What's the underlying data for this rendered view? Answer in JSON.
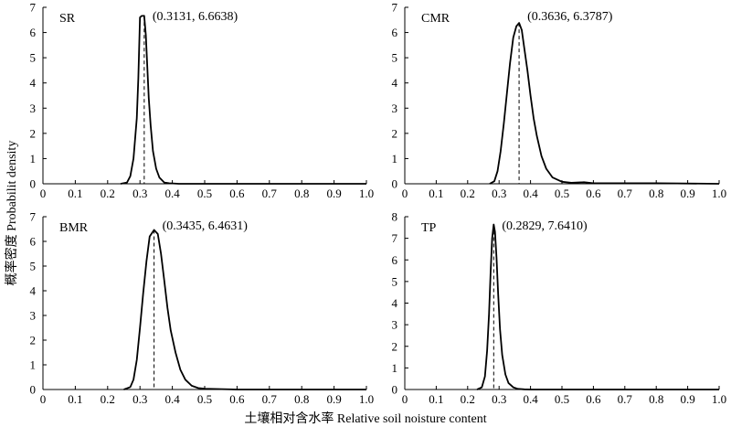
{
  "figure": {
    "ylabel": "概率密度 Probabilit density",
    "xlabel": "土壤相对含水率 Relative soil noisture content"
  },
  "chart_data": [
    {
      "type": "line",
      "panel_label": "SR",
      "peak_annotation": "(0.3131, 6.6638)",
      "peak": {
        "x": 0.3131,
        "y": 6.6638
      },
      "xlim": [
        0,
        1.0
      ],
      "ylim": [
        0,
        7
      ],
      "xticks": [
        "0",
        "0.1",
        "0.2",
        "0.3",
        "0.4",
        "0.5",
        "0.6",
        "0.7",
        "0.8",
        "0.9",
        "1.0"
      ],
      "yticks": [
        "0",
        "1",
        "2",
        "3",
        "4",
        "5",
        "6",
        "7"
      ],
      "series": [
        {
          "x": [
            0.24,
            0.26,
            0.27,
            0.28,
            0.29,
            0.295,
            0.3,
            0.305,
            0.31,
            0.3131,
            0.318,
            0.322,
            0.327,
            0.333,
            0.34,
            0.35,
            0.36,
            0.375,
            0.39,
            0.42,
            1.0
          ],
          "y": [
            0,
            0.05,
            0.3,
            1.0,
            2.6,
            4.2,
            6.6,
            6.66,
            6.66,
            6.6638,
            5.9,
            4.8,
            3.4,
            2.3,
            1.3,
            0.6,
            0.25,
            0.05,
            0.02,
            0,
            0
          ]
        }
      ]
    },
    {
      "type": "line",
      "panel_label": "CMR",
      "peak_annotation": "(0.3636, 6.3787)",
      "peak": {
        "x": 0.3636,
        "y": 6.3787
      },
      "xlim": [
        0,
        1.0
      ],
      "ylim": [
        0,
        7
      ],
      "xticks": [
        "0",
        "0.1",
        "0.2",
        "0.3",
        "0.4",
        "0.5",
        "0.6",
        "0.7",
        "0.8",
        "0.9",
        "1.0"
      ],
      "yticks": [
        "0",
        "1",
        "2",
        "3",
        "4",
        "5",
        "6",
        "7"
      ],
      "series": [
        {
          "x": [
            0.27,
            0.285,
            0.295,
            0.305,
            0.315,
            0.325,
            0.335,
            0.345,
            0.355,
            0.3636,
            0.372,
            0.38,
            0.39,
            0.4,
            0.41,
            0.42,
            0.435,
            0.45,
            0.47,
            0.5,
            0.53,
            0.57,
            0.6,
            0.8,
            1.0
          ],
          "y": [
            0,
            0.1,
            0.5,
            1.3,
            2.4,
            3.6,
            4.8,
            5.8,
            6.25,
            6.3787,
            6.1,
            5.4,
            4.5,
            3.5,
            2.6,
            1.9,
            1.1,
            0.6,
            0.25,
            0.08,
            0.04,
            0.06,
            0.02,
            0.02,
            0
          ]
        }
      ]
    },
    {
      "type": "line",
      "panel_label": "BMR",
      "peak_annotation": "(0.3435, 6.4631)",
      "peak": {
        "x": 0.3435,
        "y": 6.4631
      },
      "xlim": [
        0,
        1.0
      ],
      "ylim": [
        0,
        7
      ],
      "xticks": [
        "0",
        "0.1",
        "0.2",
        "0.3",
        "0.4",
        "0.5",
        "0.6",
        "0.7",
        "0.8",
        "0.9",
        "1.0"
      ],
      "yticks": [
        "0",
        "1",
        "2",
        "3",
        "4",
        "5",
        "6",
        "7"
      ],
      "series": [
        {
          "x": [
            0.25,
            0.27,
            0.28,
            0.29,
            0.3,
            0.31,
            0.32,
            0.33,
            0.3435,
            0.355,
            0.365,
            0.375,
            0.385,
            0.395,
            0.41,
            0.425,
            0.44,
            0.46,
            0.48,
            0.5,
            0.6,
            1.0
          ],
          "y": [
            0,
            0.1,
            0.4,
            1.2,
            2.5,
            3.9,
            5.2,
            6.2,
            6.4631,
            6.3,
            5.5,
            4.4,
            3.3,
            2.4,
            1.5,
            0.8,
            0.4,
            0.15,
            0.06,
            0.03,
            0,
            0
          ]
        }
      ]
    },
    {
      "type": "line",
      "panel_label": "TP",
      "peak_annotation": "(0.2829, 7.6410)",
      "peak": {
        "x": 0.2829,
        "y": 7.641
      },
      "xlim": [
        0,
        1.0
      ],
      "ylim": [
        0,
        8
      ],
      "xticks": [
        "0",
        "0.1",
        "0.2",
        "0.3",
        "0.4",
        "0.5",
        "0.6",
        "0.7",
        "0.8",
        "0.9",
        "1.0"
      ],
      "yticks": [
        "0",
        "1",
        "2",
        "3",
        "4",
        "5",
        "6",
        "7",
        "8"
      ],
      "series": [
        {
          "x": [
            0.23,
            0.245,
            0.255,
            0.262,
            0.268,
            0.273,
            0.278,
            0.2829,
            0.287,
            0.292,
            0.297,
            0.303,
            0.31,
            0.32,
            0.33,
            0.345,
            0.36,
            0.38,
            0.4,
            0.6,
            1.0
          ],
          "y": [
            0,
            0.1,
            0.6,
            1.8,
            3.5,
            5.4,
            7.0,
            7.641,
            7.3,
            6.1,
            4.4,
            2.8,
            1.6,
            0.7,
            0.3,
            0.1,
            0.03,
            0.01,
            0,
            0,
            0
          ]
        }
      ]
    }
  ]
}
